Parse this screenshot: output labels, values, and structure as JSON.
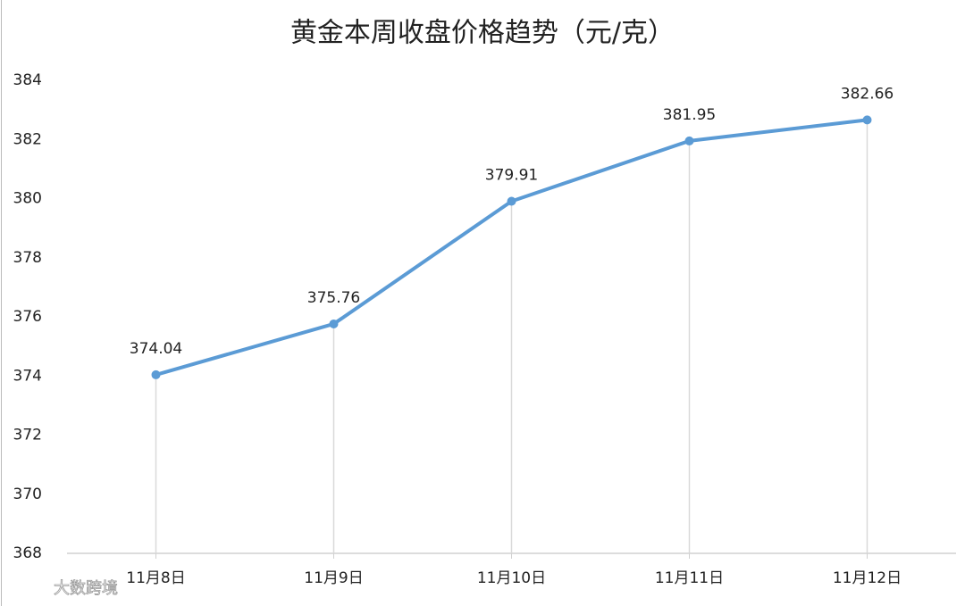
{
  "chart_data": {
    "type": "line",
    "title": "黄金本周收盘价格趋势（元/克）",
    "categories": [
      "11月8日",
      "11月9日",
      "11月10日",
      "11月11日",
      "11月12日"
    ],
    "series": [
      {
        "name": "收盘价格",
        "color": "#5b9bd5",
        "values": [
          374.04,
          375.76,
          379.91,
          381.95,
          382.66
        ]
      }
    ],
    "ylim": [
      368,
      384
    ],
    "yticks": [
      368,
      370,
      372,
      374,
      376,
      378,
      380,
      382,
      384
    ],
    "drop_lines": true,
    "legend": false,
    "watermark": "大数跨境"
  }
}
